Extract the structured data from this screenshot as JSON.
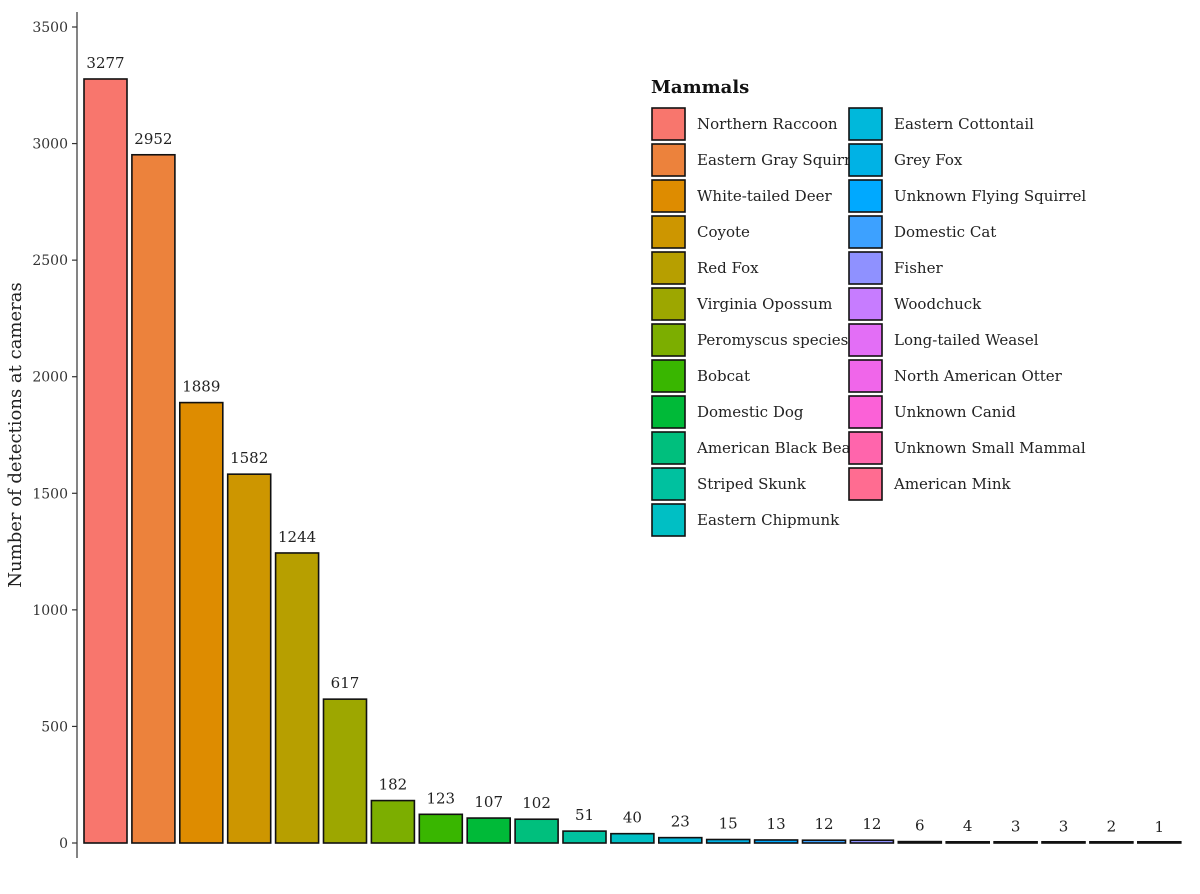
{
  "chart_data": {
    "type": "bar",
    "ylabel": "Number of detections at cameras",
    "xlabel": "",
    "ylim": [
      0,
      3500
    ],
    "yticks": [
      0,
      500,
      1000,
      1500,
      2000,
      2500,
      3000,
      3500
    ],
    "grid": false,
    "legend": {
      "title": "Mammals",
      "placement": "top-right",
      "columns": 2
    },
    "categories": [
      "Northern Raccoon",
      "Eastern Gray Squirrel",
      "White-tailed Deer",
      "Coyote",
      "Red Fox",
      "Virginia Opossum",
      "Peromyscus species",
      "Bobcat",
      "Domestic Dog",
      "American Black Bear",
      "Striped Skunk",
      "Eastern Chipmunk",
      "Eastern Cottontail",
      "Grey Fox",
      "Unknown Flying Squirrel",
      "Domestic Cat",
      "Fisher",
      "Woodchuck",
      "Long-tailed Weasel",
      "North American Otter",
      "Unknown Canid",
      "Unknown Small Mammal",
      "American Mink"
    ],
    "values": [
      3277,
      2952,
      1889,
      1582,
      1244,
      617,
      182,
      123,
      107,
      102,
      51,
      40,
      23,
      15,
      13,
      12,
      12,
      6,
      4,
      3,
      3,
      2,
      1
    ],
    "colors": [
      "#F8766D",
      "#EC823C",
      "#DE8C00",
      "#CD9600",
      "#B79F00",
      "#9DA700",
      "#7CAE00",
      "#39B600",
      "#00BA38",
      "#00BF7D",
      "#00C19F",
      "#00BFC4",
      "#00B8DB",
      "#00B2E5",
      "#00A9FF",
      "#3DA1FF",
      "#8F91FF",
      "#C77CFF",
      "#E36EF6",
      "#F066EA",
      "#FB61D7",
      "#FF65AC",
      "#FF6C91"
    ]
  }
}
